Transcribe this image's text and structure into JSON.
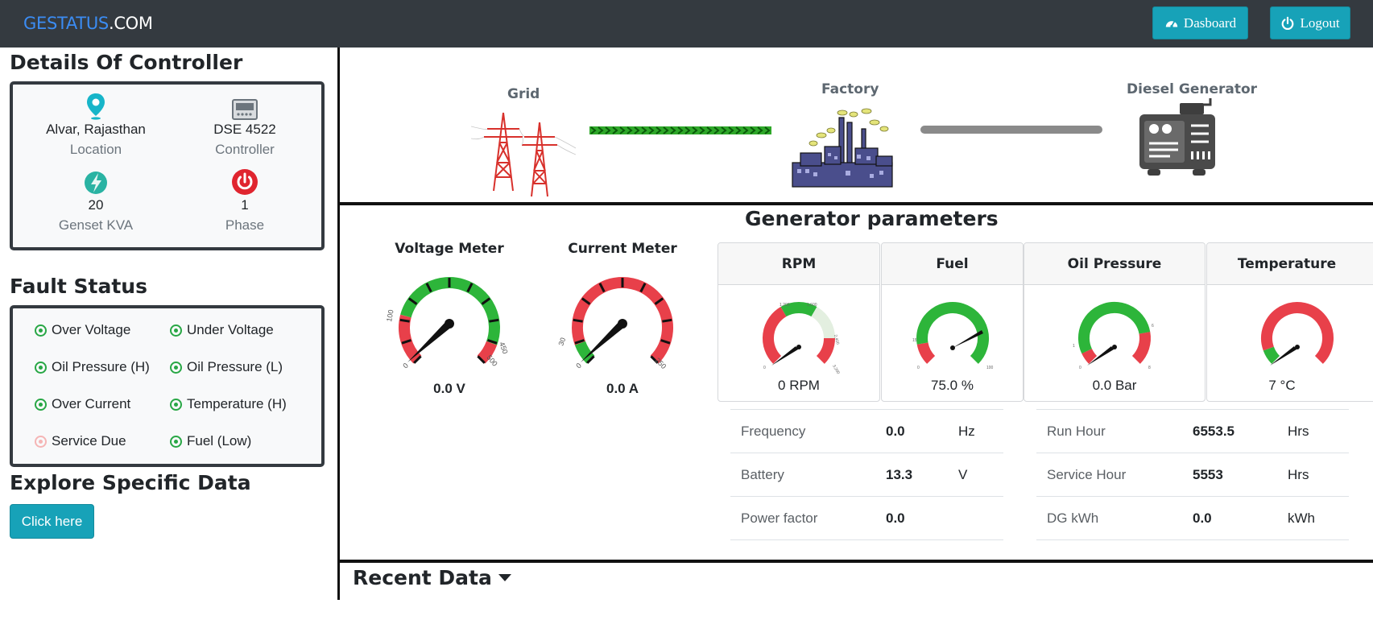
{
  "navbar": {
    "brand_part1": "GESTATUS",
    "brand_part2": ".COM",
    "dashboard_label": "Dasboard",
    "logout_label": "Logout"
  },
  "controller": {
    "title": "Details Of Controller",
    "cells": [
      {
        "value": "Alvar, Rajasthan",
        "label": "Location",
        "icon": "location-pin-icon"
      },
      {
        "value": "DSE 4522",
        "label": "Controller",
        "icon": "controller-device-icon"
      },
      {
        "value": "20",
        "label": "Genset KVA",
        "icon": "lightning-bolt-icon"
      },
      {
        "value": "1",
        "label": "Phase",
        "icon": "power-icon"
      }
    ]
  },
  "fault": {
    "title": "Fault Status",
    "items": [
      {
        "label": "Over Voltage",
        "ok": true
      },
      {
        "label": "Under Voltage",
        "ok": true
      },
      {
        "label": "Oil Pressure (H)",
        "ok": true
      },
      {
        "label": "Oil Pressure (L)",
        "ok": true
      },
      {
        "label": "Over Current",
        "ok": true
      },
      {
        "label": "Temperature (H)",
        "ok": true
      },
      {
        "label": "Service Due",
        "ok": false
      },
      {
        "label": "Fuel (Low)",
        "ok": true
      }
    ]
  },
  "explore": {
    "title": "Explore Specific Data",
    "button": "Click here"
  },
  "flow": {
    "grid": "Grid",
    "factory": "Factory",
    "generator": "Diesel Generator"
  },
  "generator": {
    "title": "Generator parameters",
    "voltage": {
      "title": "Voltage Meter",
      "value": "0.0 V",
      "ticks": [
        "0",
        "100",
        "450",
        "500"
      ]
    },
    "current": {
      "title": "Current Meter",
      "value": "0.0 A",
      "ticks": [
        "0",
        "30",
        "250"
      ]
    },
    "cards": [
      {
        "title": "RPM",
        "value": "0 RPM"
      },
      {
        "title": "Fuel",
        "value": "75.0 %"
      },
      {
        "title": "Oil Pressure",
        "value": "0.0 Bar"
      },
      {
        "title": "Temperature",
        "value": "7 °C"
      }
    ],
    "rpm_ticks": [
      "0",
      "1,200",
      "1,600",
      "2,400",
      "3,200"
    ],
    "fuel_ticks": [
      "0",
      "15",
      "100"
    ],
    "oil_ticks": [
      "0",
      "1",
      "6",
      "8"
    ]
  },
  "params_left": [
    {
      "label": "Frequency",
      "value": "0.0",
      "unit": "Hz"
    },
    {
      "label": "Battery",
      "value": "13.3",
      "unit": "V"
    },
    {
      "label": "Power factor",
      "value": "0.0",
      "unit": ""
    }
  ],
  "params_right": [
    {
      "label": "Run Hour",
      "value": "6553.5",
      "unit": "Hrs"
    },
    {
      "label": "Service Hour",
      "value": "5553",
      "unit": "Hrs"
    },
    {
      "label": "DG kWh",
      "value": "0.0",
      "unit": "kWh"
    }
  ],
  "recent": {
    "title": "Recent Data"
  },
  "colors": {
    "navbar": "#343a40",
    "accent": "#17a2b8",
    "brand_blue": "#3b8cf3",
    "gauge_green": "#2db53a",
    "gauge_red": "#e8404a"
  }
}
